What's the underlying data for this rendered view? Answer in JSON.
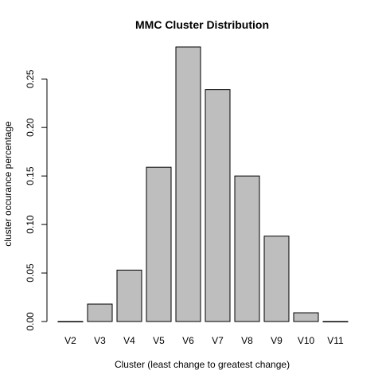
{
  "chart_data": {
    "type": "bar",
    "title": "MMC Cluster Distribution",
    "xlabel": "Cluster (least change to greatest change)",
    "ylabel": "cluster occurance percentage",
    "categories": [
      "V2",
      "V3",
      "V4",
      "V5",
      "V6",
      "V7",
      "V8",
      "V9",
      "V10",
      "V11"
    ],
    "values": [
      0.0,
      0.018,
      0.053,
      0.159,
      0.283,
      0.239,
      0.15,
      0.088,
      0.009,
      0.0
    ],
    "yticks": [
      0.0,
      0.05,
      0.1,
      0.15,
      0.2,
      0.25
    ],
    "ytick_labels": [
      "0.00",
      "0.05",
      "0.10",
      "0.15",
      "0.20",
      "0.25"
    ],
    "ylim": [
      0,
      0.283
    ],
    "bar_color": "#BEBEBE",
    "bar_edge_color": "#000000",
    "grid": false,
    "legend": "none"
  }
}
